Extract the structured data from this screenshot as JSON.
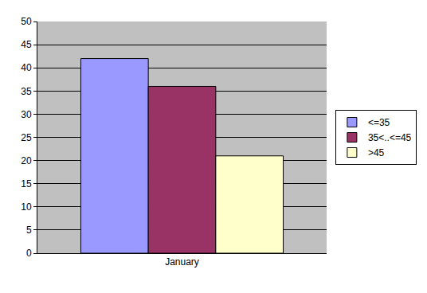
{
  "chart_data": {
    "type": "bar",
    "categories": [
      "January"
    ],
    "series": [
      {
        "name": "<=35",
        "color": "#9999ff",
        "values": [
          42
        ]
      },
      {
        "name": "35<..<=45",
        "color": "#993366",
        "values": [
          36
        ]
      },
      {
        "name": ">45",
        "color": "#ffffcc",
        "values": [
          21
        ]
      }
    ],
    "ylim": [
      0,
      50
    ],
    "yticks": [
      0,
      5,
      10,
      15,
      20,
      25,
      30,
      35,
      40,
      45,
      50
    ],
    "grid": true,
    "legend": "right"
  }
}
